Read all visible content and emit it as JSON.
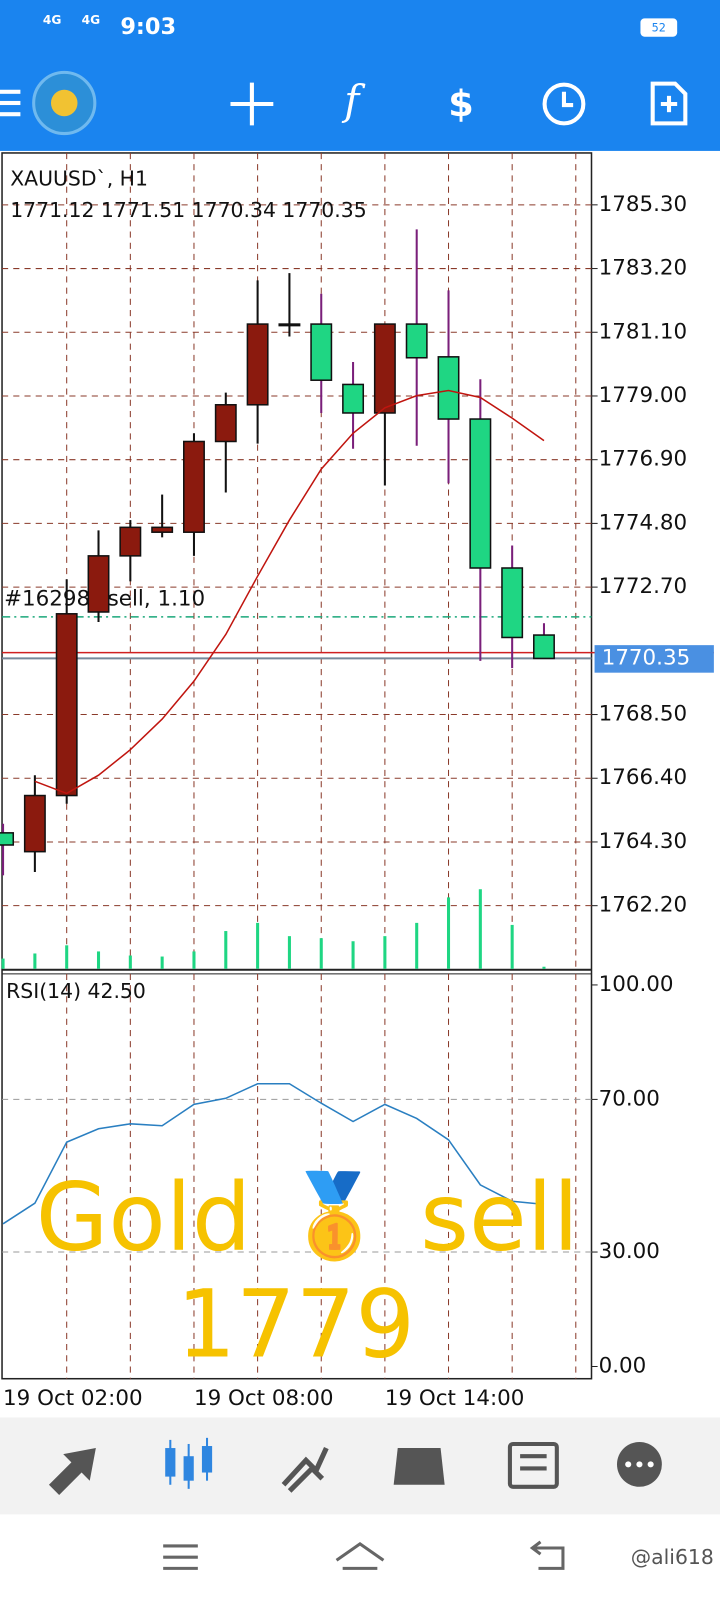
{
  "status_bar": {
    "network_1": "4G",
    "network_2": "4G",
    "time": "9:03",
    "battery": "52"
  },
  "chart_data": {
    "type": "candlestick",
    "title": "XAUUSD`, H1",
    "ohlc_label": "1771.12 1771.51 1770.34 1770.35",
    "categories": [
      "19 Oct 02:00",
      null,
      null,
      null,
      null,
      null,
      "19 Oct 08:00",
      null,
      null,
      null,
      null,
      null,
      "19 Oct 14:00",
      null,
      null,
      null,
      null,
      null
    ],
    "open": [
      1764.6,
      1763.98,
      1765.83,
      1771.88,
      1773.73,
      1774.51,
      1774.51,
      1777.5,
      1778.71,
      1781.37,
      1781.37,
      1779.38,
      1778.44,
      1781.37,
      1780.29,
      1778.24,
      1773.33,
      1771.12
    ],
    "high": [
      1764.9,
      1766.5,
      1772.96,
      1774.57,
      1774.91,
      1775.75,
      1777.77,
      1779.11,
      1782.81,
      1783.05,
      1782.37,
      1780.12,
      1781.37,
      1784.49,
      1782.48,
      1779.55,
      1774.07,
      1771.51
    ],
    "low": [
      1763.2,
      1763.31,
      1765.56,
      1771.55,
      1772.89,
      1774.34,
      1773.73,
      1775.82,
      1777.43,
      1780.96,
      1778.44,
      1777.26,
      1776.05,
      1777.36,
      1776.12,
      1770.27,
      1770.03,
      1770.34
    ],
    "close": [
      1764.2,
      1765.83,
      1771.82,
      1773.73,
      1774.67,
      1774.67,
      1777.5,
      1778.71,
      1781.37,
      1781.37,
      1779.52,
      1778.44,
      1781.37,
      1780.26,
      1778.24,
      1773.33,
      1771.04,
      1770.35
    ],
    "bull_color": "#8b1a0e",
    "bear_color": "#1fd683",
    "ma": {
      "color": "#c0150f",
      "values": [
        null,
        1766.3,
        1765.9,
        1766.5,
        1767.34,
        1768.35,
        1769.6,
        1771.14,
        1773.06,
        1774.91,
        1776.59,
        1777.77,
        1778.61,
        1779.01,
        1779.18,
        1778.95,
        1778.27,
        1777.53
      ]
    },
    "volumes": [
      10,
      15,
      23,
      17,
      13,
      12,
      17,
      37,
      45,
      32,
      30,
      27,
      32,
      45,
      70,
      78,
      43,
      2
    ],
    "volume_color": "#1fd683",
    "ylim": [
      1760.12,
      1787.01
    ],
    "yticks": [
      {
        "value": 1785.3,
        "label": "1785.30"
      },
      {
        "value": 1783.2,
        "label": "1783.20"
      },
      {
        "value": 1781.1,
        "label": "1781.10"
      },
      {
        "value": 1779.0,
        "label": "1779.00"
      },
      {
        "value": 1776.9,
        "label": "1776.90"
      },
      {
        "value": 1774.8,
        "label": "1774.80"
      },
      {
        "value": 1772.7,
        "label": "1772.70"
      },
      {
        "value": 1768.5,
        "label": "1768.50"
      },
      {
        "value": 1766.4,
        "label": "1766.40"
      },
      {
        "value": 1764.3,
        "label": "1764.30"
      },
      {
        "value": 1762.2,
        "label": "1762.20"
      }
    ],
    "grid": true,
    "current_price": 1770.35,
    "order_label": "#16298` sell, 1.10",
    "order_price": 1771.72,
    "ask_price": 1770.54,
    "rsi": {
      "label": "RSI(14) 42.50",
      "color": "#2a7fc1",
      "values": [
        37.4,
        42.8,
        58.8,
        62.3,
        63.6,
        63.1,
        68.7,
        70.3,
        74.1,
        74.1,
        69.0,
        64.2,
        68.7,
        65.0,
        59.4,
        47.6,
        43.3,
        42.5
      ],
      "ylim": [
        -3.2,
        102.9
      ],
      "yticks": [
        {
          "value": 100,
          "label": "100.00"
        },
        {
          "value": 70,
          "label": "70.00"
        },
        {
          "value": 30,
          "label": "30.00"
        },
        {
          "value": 0,
          "label": "0.00"
        }
      ]
    }
  },
  "overlay": {
    "word_1": "Gold",
    "emoji": "🥇",
    "word_2": "sell",
    "price": "1779"
  },
  "watermark": "@ali618"
}
